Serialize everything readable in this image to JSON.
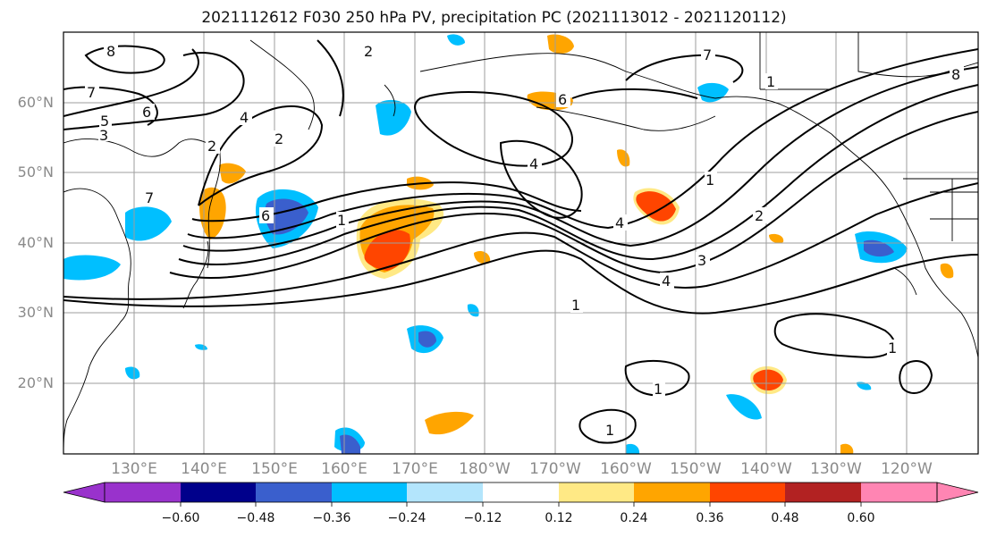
{
  "title": "2021112612 F030 250 hPa PV, precipitation PC (2021113012 - 2021120112)",
  "map": {
    "lat_labels": [
      "60°N",
      "50°N",
      "40°N",
      "30°N",
      "20°N"
    ],
    "lon_labels": [
      "130°E",
      "140°E",
      "150°E",
      "160°E",
      "170°E",
      "180°W",
      "170°W",
      "160°W",
      "150°W",
      "140°W",
      "130°W",
      "120°W"
    ],
    "contour_labels": [
      "8",
      "7",
      "6",
      "5",
      "4",
      "3",
      "2",
      "1",
      "2",
      "6",
      "4",
      "7",
      "6",
      "1",
      "4",
      "1",
      "2",
      "3",
      "4",
      "7",
      "8",
      "1",
      "1",
      "1",
      "1",
      "2"
    ]
  },
  "colorbar": {
    "ticks": [
      "−0.60",
      "−0.48",
      "−0.36",
      "−0.24",
      "−0.12",
      "0.12",
      "0.24",
      "0.36",
      "0.48",
      "0.60"
    ],
    "colors": [
      "#9932cc",
      "#00008b",
      "#3a5fcd",
      "#00bfff",
      "#b3e5fc",
      "#ffffff",
      "#ffe985",
      "#ffa500",
      "#ff4500",
      "#b22222",
      "#ff85b3"
    ]
  }
}
